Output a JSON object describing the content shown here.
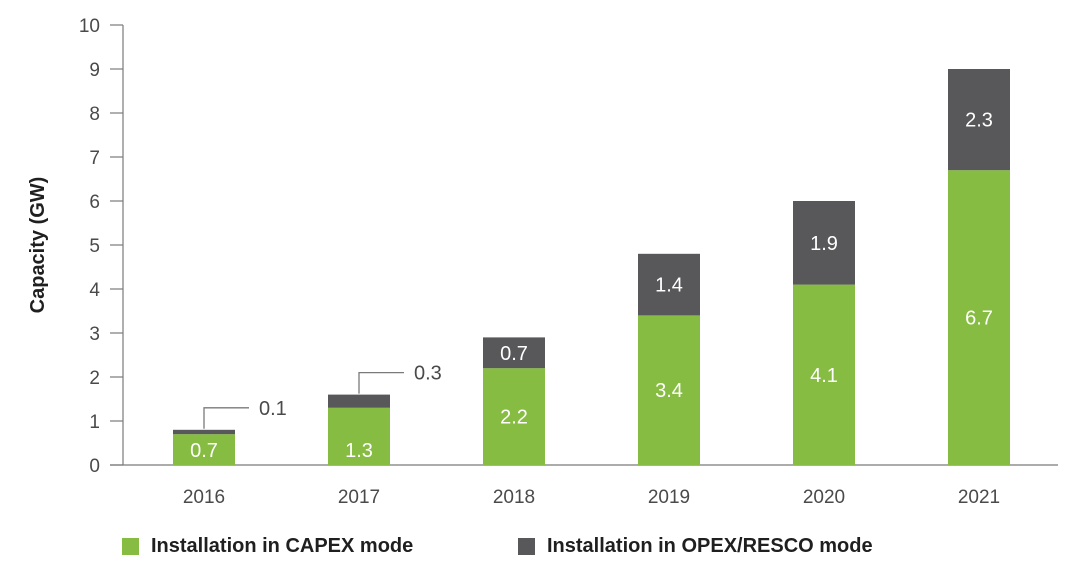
{
  "chart_data": {
    "type": "bar",
    "stacked": true,
    "categories": [
      "2016",
      "2017",
      "2018",
      "2019",
      "2020",
      "2021"
    ],
    "series": [
      {
        "name": "Installation in CAPEX mode",
        "values": [
          0.7,
          1.3,
          2.2,
          3.4,
          4.1,
          6.7
        ],
        "color": "#86bc41"
      },
      {
        "name": "Installation in OPEX/RESCO mode",
        "values": [
          0.1,
          0.3,
          0.7,
          1.4,
          1.9,
          2.3
        ],
        "color": "#58585a"
      }
    ],
    "ylabel": "Capacity (GW)",
    "xlabel": "",
    "ylim": [
      0,
      10
    ],
    "yticks": [
      "0",
      "1",
      "2",
      "3",
      "4",
      "5",
      "6",
      "7",
      "8",
      "9",
      "10"
    ],
    "data_labels": {
      "capex": [
        "0.7",
        "1.3",
        "2.2",
        "3.4",
        "4.1",
        "6.7"
      ],
      "opex": [
        "0.1",
        "0.3",
        "0.7",
        "1.4",
        "1.9",
        "2.3"
      ]
    },
    "legend_position": "bottom",
    "grid": false
  }
}
